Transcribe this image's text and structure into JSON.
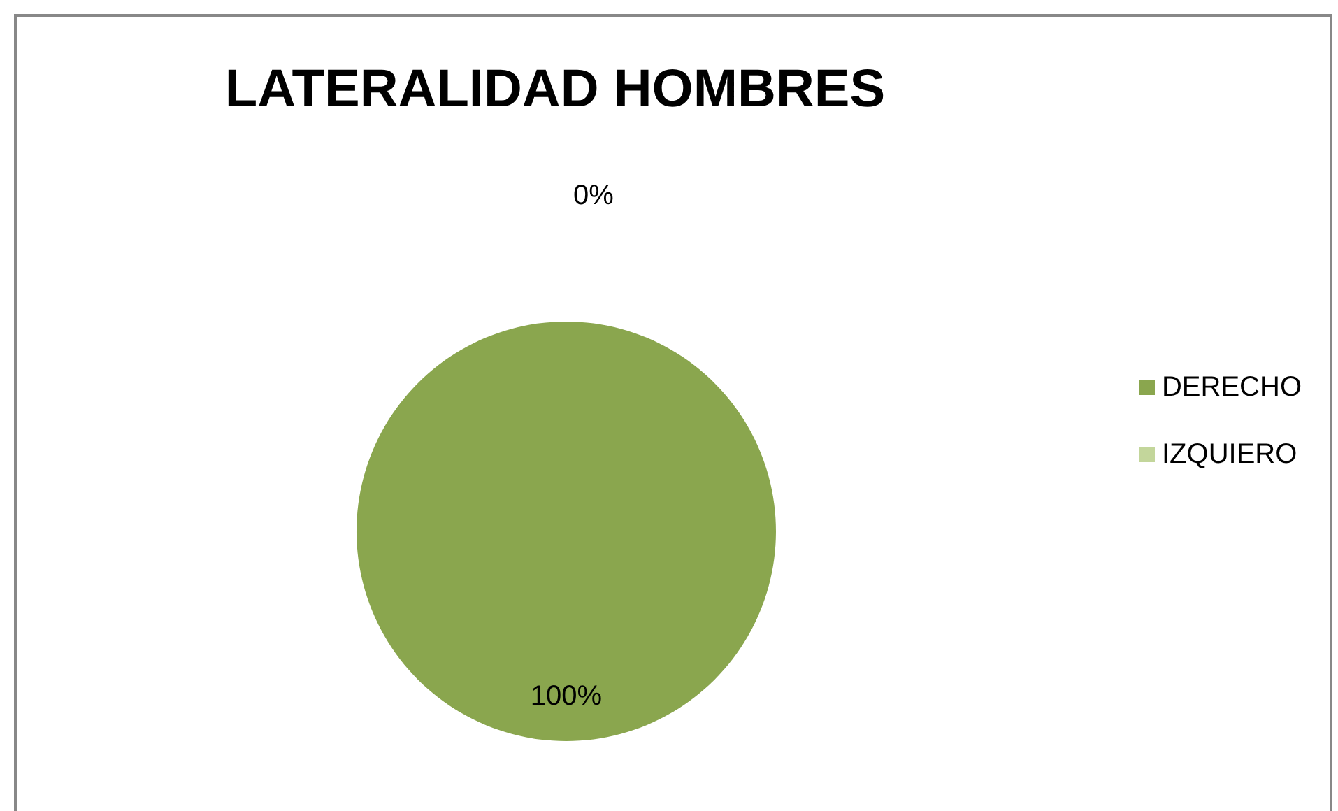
{
  "chart_data": {
    "type": "pie",
    "title": "LATERALIDAD HOMBRES",
    "categories": [
      "DERECHO",
      "IZQUIERO"
    ],
    "values": [
      100,
      0
    ],
    "colors": [
      "#8aa64e",
      "#c3d69b"
    ],
    "value_labels": [
      "100%",
      "0%"
    ],
    "legend": "right"
  }
}
